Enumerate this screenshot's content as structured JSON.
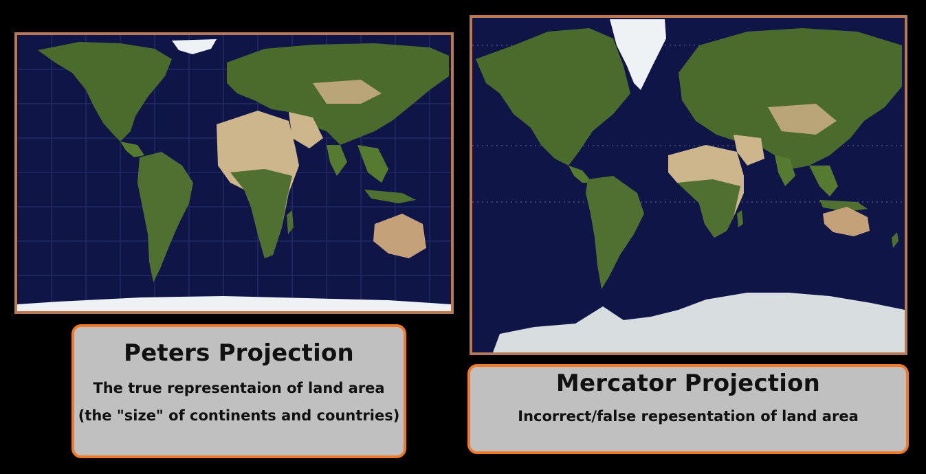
{
  "peters": {
    "title": "Peters Projection",
    "lines": [
      "The true representaion of land area",
      "(the \"size\" of continents and countries)"
    ]
  },
  "mercator": {
    "title": "Mercator Projection",
    "lines": [
      "Incorrect/false repesentation of land area"
    ]
  },
  "colors": {
    "background": "#000000",
    "ocean": "#0f1547",
    "map_border": "#b77a55",
    "caption_fill": "#c0c0c0",
    "caption_border": "#f07a2a",
    "land_green": "#4b6b2c",
    "land_desert": "#cdb58c",
    "ice": "#eef2f4"
  }
}
